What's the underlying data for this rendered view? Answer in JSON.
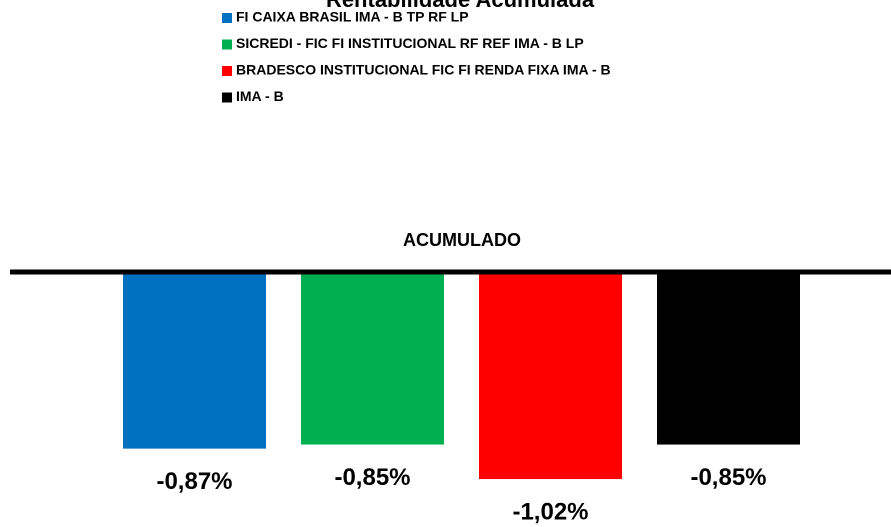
{
  "chart_data": {
    "type": "bar",
    "title": "Rentabilidade Acumulada",
    "categories": [
      "ACUMULADO"
    ],
    "series": [
      {
        "name": "FI CAIXA BRASIL IMA - B TP RF LP",
        "color": "#0070c0",
        "values": [
          -0.87
        ],
        "value_labels": [
          "-0,87%"
        ]
      },
      {
        "name": "SICREDI - FIC FI INSTITUCIONAL RF REF IMA - B LP",
        "color": "#00b050",
        "values": [
          -0.85
        ],
        "value_labels": [
          "-0,85%"
        ]
      },
      {
        "name": "BRADESCO INSTITUCIONAL FIC FI RENDA FIXA IMA - B",
        "color": "#ff0000",
        "values": [
          -1.02
        ],
        "value_labels": [
          "-1,02%"
        ]
      },
      {
        "name": "IMA - B",
        "color": "#000000",
        "values": [
          -0.85
        ],
        "value_labels": [
          "-0,85%"
        ]
      }
    ]
  }
}
